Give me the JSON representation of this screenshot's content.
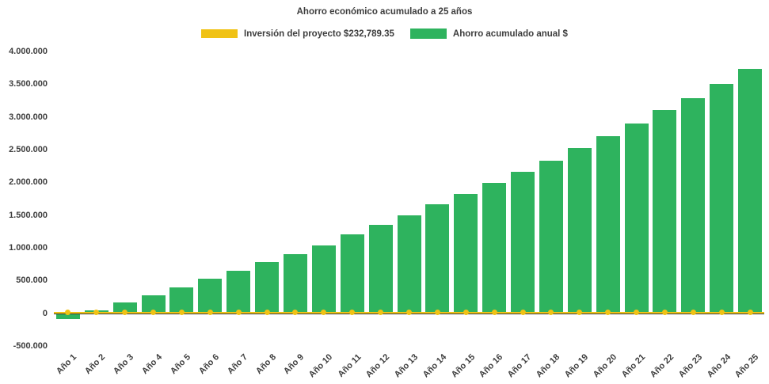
{
  "colors": {
    "bar_green": "#2EB35E",
    "line_yellow": "#F0C215",
    "text": "#3D3D3D",
    "axis": "#3A3A3A",
    "background": "#FFFFFF"
  },
  "chart_data": {
    "type": "bar",
    "title": "Ahorro económico acumulado a 25 años",
    "legend": [
      {
        "label": "Inversión del proyecto $232,789.35",
        "series": "investment"
      },
      {
        "label": "Ahorro acumulado anual $",
        "series": "savings"
      }
    ],
    "legend_position": "top",
    "grid": false,
    "xlabel": "",
    "ylabel": "",
    "ylim": [
      -500000,
      4000000
    ],
    "y_ticks": [
      {
        "v": 4000000,
        "label": "4.000.000"
      },
      {
        "v": 3500000,
        "label": "3.500.000"
      },
      {
        "v": 3000000,
        "label": "3.000.000"
      },
      {
        "v": 2500000,
        "label": "2.500.000"
      },
      {
        "v": 2000000,
        "label": "2.000.000"
      },
      {
        "v": 1500000,
        "label": "1.500.000"
      },
      {
        "v": 1000000,
        "label": "1.000.000"
      },
      {
        "v": 500000,
        "label": "500.000"
      },
      {
        "v": 0,
        "label": "0"
      },
      {
        "v": -500000,
        "label": "-500.000"
      }
    ],
    "categories": [
      "Año 1",
      "Año 2",
      "Año 3",
      "Año 4",
      "Año 5",
      "Año 6",
      "Año 7",
      "Año 8",
      "Año 9",
      "Año 10",
      "Año 11",
      "Año 12",
      "Año 13",
      "Año 14",
      "Año 15",
      "Año 16",
      "Año 17",
      "Año 18",
      "Año 19",
      "Año 20",
      "Año 21",
      "Año 22",
      "Año 23",
      "Año 24",
      "Año 25"
    ],
    "series": [
      {
        "name": "Ahorro acumulado anual $",
        "type": "bar",
        "color": "#2EB35E",
        "values": [
          -90000,
          50000,
          160000,
          280000,
          400000,
          530000,
          650000,
          780000,
          900000,
          1040000,
          1200000,
          1350000,
          1500000,
          1660000,
          1820000,
          1990000,
          2160000,
          2330000,
          2520000,
          2700000,
          2900000,
          3100000,
          3290000,
          3500000,
          3730000
        ]
      },
      {
        "name": "Inversión del proyecto $232,789.35",
        "type": "line",
        "color": "#F0C215",
        "amount": 232789.35,
        "plotted_constant": 0
      }
    ]
  }
}
